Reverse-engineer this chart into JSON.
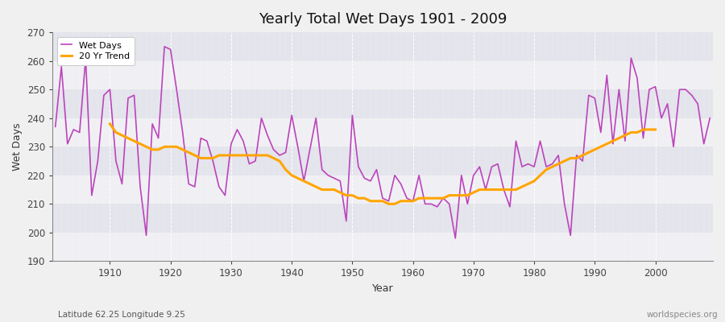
{
  "title": "Yearly Total Wet Days 1901 - 2009",
  "xlabel": "Year",
  "ylabel": "Wet Days",
  "subtitle": "Latitude 62.25 Longitude 9.25",
  "watermark": "worldspecies.org",
  "ylim": [
    190,
    270
  ],
  "yticks": [
    190,
    200,
    210,
    220,
    230,
    240,
    250,
    260,
    270
  ],
  "wet_days_color": "#bb44bb",
  "trend_color": "#FFA500",
  "fig_bg_color": "#f0f0f0",
  "plot_bg_light": "#f0f0f4",
  "plot_bg_dark": "#e4e4ec",
  "years": [
    1901,
    1902,
    1903,
    1904,
    1905,
    1906,
    1907,
    1908,
    1909,
    1910,
    1911,
    1912,
    1913,
    1914,
    1915,
    1916,
    1917,
    1918,
    1919,
    1920,
    1921,
    1922,
    1923,
    1924,
    1925,
    1926,
    1927,
    1928,
    1929,
    1930,
    1931,
    1932,
    1933,
    1934,
    1935,
    1936,
    1937,
    1938,
    1939,
    1940,
    1941,
    1942,
    1943,
    1944,
    1945,
    1946,
    1947,
    1948,
    1949,
    1950,
    1951,
    1952,
    1953,
    1954,
    1955,
    1956,
    1957,
    1958,
    1959,
    1960,
    1961,
    1962,
    1963,
    1964,
    1965,
    1966,
    1967,
    1968,
    1969,
    1970,
    1971,
    1972,
    1973,
    1974,
    1975,
    1976,
    1977,
    1978,
    1979,
    1980,
    1981,
    1982,
    1983,
    1984,
    1985,
    1986,
    1987,
    1988,
    1989,
    1990,
    1991,
    1992,
    1993,
    1994,
    1995,
    1996,
    1997,
    1998,
    1999,
    2000,
    2001,
    2002,
    2003,
    2004,
    2005,
    2006,
    2007,
    2008,
    2009
  ],
  "wet_days": [
    237,
    258,
    231,
    236,
    235,
    261,
    213,
    225,
    248,
    250,
    225,
    217,
    247,
    248,
    216,
    199,
    238,
    233,
    265,
    264,
    250,
    235,
    217,
    216,
    233,
    232,
    225,
    216,
    213,
    231,
    236,
    232,
    224,
    225,
    240,
    234,
    229,
    227,
    228,
    241,
    230,
    218,
    229,
    240,
    222,
    220,
    219,
    218,
    204,
    241,
    223,
    219,
    218,
    222,
    212,
    211,
    220,
    217,
    212,
    211,
    220,
    210,
    210,
    209,
    212,
    210,
    198,
    220,
    210,
    220,
    223,
    215,
    223,
    224,
    215,
    209,
    232,
    223,
    224,
    223,
    232,
    223,
    224,
    227,
    210,
    199,
    227,
    225,
    248,
    247,
    235,
    255,
    231,
    250,
    232,
    261,
    254,
    233,
    250,
    251,
    240,
    245,
    230,
    250,
    250,
    248,
    245,
    231,
    240
  ],
  "trend_years": [
    1910,
    1911,
    1912,
    1913,
    1914,
    1915,
    1916,
    1917,
    1918,
    1919,
    1920,
    1921,
    1922,
    1923,
    1924,
    1925,
    1926,
    1927,
    1928,
    1929,
    1930,
    1931,
    1932,
    1933,
    1934,
    1935,
    1936,
    1937,
    1938,
    1939,
    1940,
    1941,
    1942,
    1943,
    1944,
    1945,
    1946,
    1947,
    1948,
    1949,
    1950,
    1951,
    1952,
    1953,
    1954,
    1955,
    1956,
    1957,
    1958,
    1959,
    1960,
    1961,
    1962,
    1963,
    1964,
    1965,
    1966,
    1967,
    1968,
    1969,
    1970,
    1971,
    1972,
    1973,
    1974,
    1975,
    1976,
    1977,
    1978,
    1979,
    1980,
    1981,
    1982,
    1983,
    1984,
    1985,
    1986,
    1987,
    1988,
    1989,
    1990,
    1991,
    1992,
    1993,
    1994,
    1995,
    1996,
    1997,
    1998,
    1999,
    2000
  ],
  "trend_values": [
    238,
    235,
    234,
    233,
    232,
    231,
    230,
    229,
    229,
    230,
    230,
    230,
    229,
    228,
    227,
    226,
    226,
    226,
    227,
    227,
    227,
    227,
    227,
    227,
    227,
    227,
    227,
    226,
    225,
    222,
    220,
    219,
    218,
    217,
    216,
    215,
    215,
    215,
    214,
    213,
    213,
    212,
    212,
    211,
    211,
    211,
    210,
    210,
    211,
    211,
    211,
    212,
    212,
    212,
    212,
    212,
    213,
    213,
    213,
    213,
    214,
    215,
    215,
    215,
    215,
    215,
    215,
    215,
    216,
    217,
    218,
    220,
    222,
    223,
    224,
    225,
    226,
    226,
    227,
    228,
    229,
    230,
    231,
    232,
    233,
    234,
    235,
    235,
    236,
    236,
    236
  ],
  "xticks": [
    1910,
    1920,
    1930,
    1940,
    1950,
    1960,
    1970,
    1980,
    1990,
    2000
  ],
  "title_fontsize": 13,
  "label_fontsize": 9,
  "tick_fontsize": 8.5,
  "legend_fontsize": 8
}
